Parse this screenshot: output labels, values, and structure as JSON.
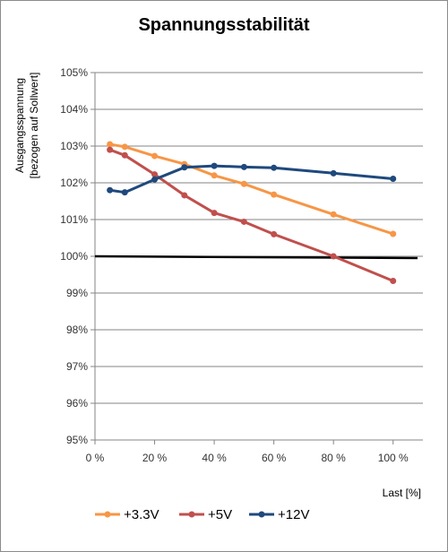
{
  "chart_data": {
    "type": "line",
    "title": "Spannungsstabilität",
    "ylabel_line1": "Ausgangsspannung",
    "ylabel_line2": "[bezogen auf Sollwert]",
    "xlabel": "Last [%]",
    "xlim": [
      0,
      110
    ],
    "ylim": [
      95,
      105
    ],
    "x_ticks": [
      0,
      20,
      40,
      60,
      80,
      100
    ],
    "x_tick_labels": [
      "0 %",
      "20 %",
      "40 %",
      "60 %",
      "80 %",
      "100 %"
    ],
    "y_ticks": [
      95,
      96,
      97,
      98,
      99,
      100,
      101,
      102,
      103,
      104,
      105
    ],
    "y_tick_labels": [
      "95%",
      "96%",
      "97%",
      "98%",
      "99%",
      "100%",
      "101%",
      "102%",
      "103%",
      "104%",
      "105%"
    ],
    "grid": "horizontal",
    "legend_position": "bottom",
    "reference_line": {
      "y": 100,
      "color": "#000000"
    },
    "series": [
      {
        "name": "+3.3V",
        "color": "#f79646",
        "x": [
          5,
          10,
          20,
          30,
          40,
          50,
          60,
          80,
          100
        ],
        "y": [
          103.05,
          102.98,
          102.73,
          102.51,
          102.2,
          101.97,
          101.68,
          101.14,
          100.61
        ]
      },
      {
        "name": "+5V",
        "color": "#c0504d",
        "x": [
          5,
          10,
          20,
          30,
          40,
          50,
          60,
          80,
          100
        ],
        "y": [
          102.9,
          102.75,
          102.23,
          101.66,
          101.18,
          100.94,
          100.6,
          100.0,
          99.33
        ]
      },
      {
        "name": "+12V",
        "color": "#1f497d",
        "x": [
          5,
          10,
          20,
          30,
          40,
          50,
          60,
          80,
          100
        ],
        "y": [
          101.8,
          101.74,
          102.09,
          102.42,
          102.46,
          102.43,
          102.41,
          102.26,
          102.11
        ]
      }
    ]
  }
}
